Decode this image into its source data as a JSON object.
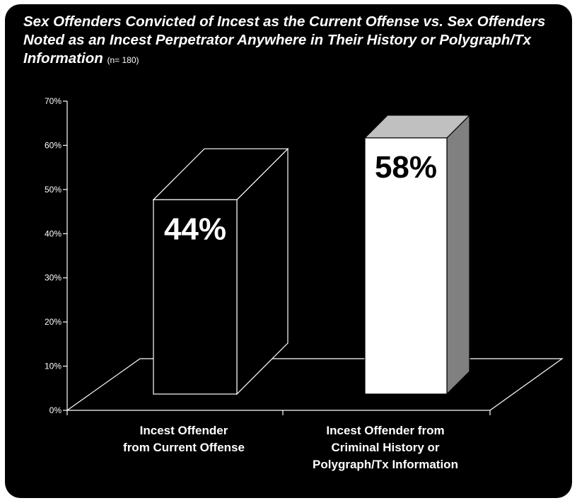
{
  "chart_data": {
    "type": "bar",
    "title": "Sex Offenders Convicted of Incest as the Current Offense vs. Sex Offenders Noted as an Incest Perpetrator Anywhere in Their History or Polygraph/Tx Information",
    "subtitle": "(n= 180)",
    "categories": [
      "Incest Offender\nfrom Current Offense",
      "Incest Offender from\nCriminal History or\nPolygraph/Tx Information"
    ],
    "values": [
      44,
      58
    ],
    "data_labels": [
      "44%",
      "58%"
    ],
    "y_ticks": [
      "0%",
      "10%",
      "20%",
      "30%",
      "40%",
      "50%",
      "60%",
      "70%"
    ],
    "ylim": [
      0,
      70
    ],
    "grid": false,
    "bar_colors": [
      "#000000",
      "#ffffff"
    ],
    "label_colors": [
      "#ffffff",
      "#000000"
    ]
  }
}
